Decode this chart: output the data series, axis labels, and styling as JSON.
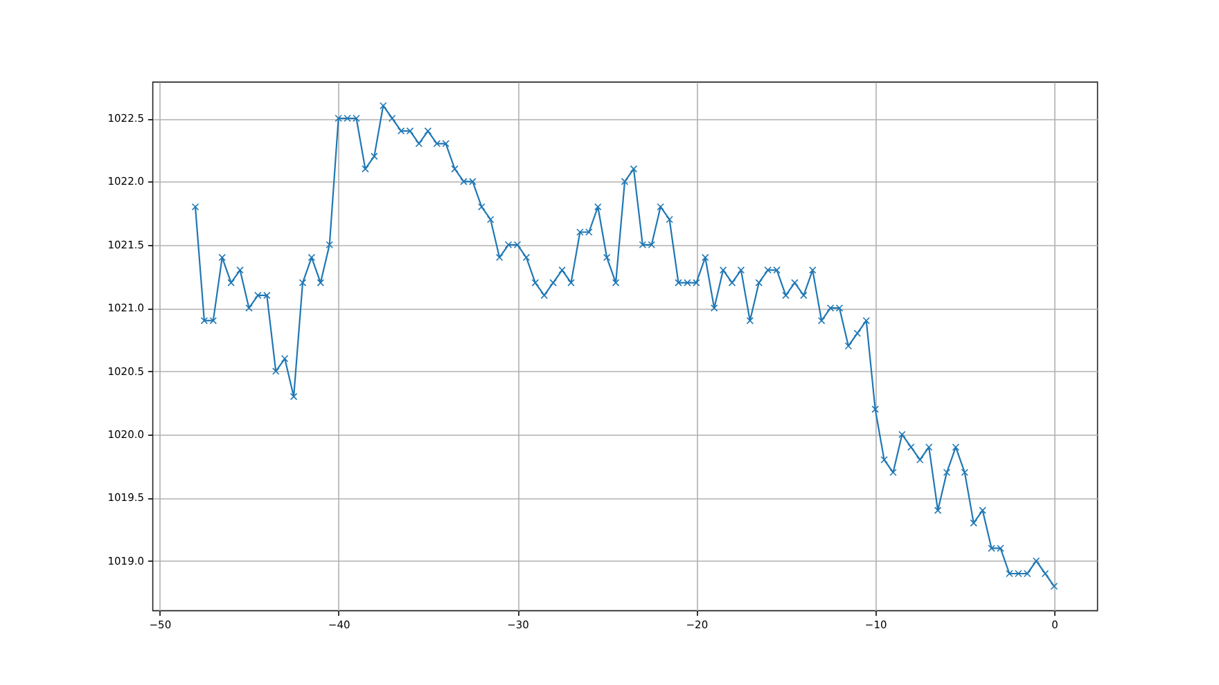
{
  "chart_data": {
    "type": "line",
    "x": [
      -48,
      -47.5,
      -47,
      -46.5,
      -46,
      -45.5,
      -45,
      -44.5,
      -44,
      -43.5,
      -43,
      -42.5,
      -42,
      -41.5,
      -41,
      -40.5,
      -40,
      -39.5,
      -39,
      -38.5,
      -38,
      -37.5,
      -37,
      -36.5,
      -36,
      -35.5,
      -35,
      -34.5,
      -34,
      -33.5,
      -33,
      -32.5,
      -32,
      -31.5,
      -31,
      -30.5,
      -30,
      -29.5,
      -29,
      -28.5,
      -28,
      -27.5,
      -27,
      -26.5,
      -26,
      -25.5,
      -25,
      -24.5,
      -24,
      -23.5,
      -23,
      -22.5,
      -22,
      -21.5,
      -21,
      -20.5,
      -20,
      -19.5,
      -19,
      -18.5,
      -18,
      -17.5,
      -17,
      -16.5,
      -16,
      -15.5,
      -15,
      -14.5,
      -14,
      -13.5,
      -13,
      -12.5,
      -12,
      -11.5,
      -11,
      -10.5,
      -10,
      -9.5,
      -9,
      -8.5,
      -8,
      -7.5,
      -7,
      -6.5,
      -6,
      -5.5,
      -5,
      -4.5,
      -4,
      -3.5,
      -3,
      -2.5,
      -2,
      -1.5,
      -1,
      -0.5,
      0
    ],
    "series": [
      {
        "color": "#1f77b4",
        "values": [
          1021.8,
          1020.9,
          1020.9,
          1021.4,
          1021.2,
          1021.3,
          1021.0,
          1021.1,
          1021.1,
          1020.5,
          1020.6,
          1020.3,
          1021.2,
          1021.4,
          1021.2,
          1021.5,
          1022.5,
          1022.5,
          1022.5,
          1022.1,
          1022.2,
          1022.6,
          1022.5,
          1022.4,
          1022.4,
          1022.3,
          1022.4,
          1022.3,
          1022.3,
          1022.1,
          1022.0,
          1022.0,
          1021.8,
          1021.7,
          1021.4,
          1021.5,
          1021.5,
          1021.4,
          1021.2,
          1021.1,
          1021.2,
          1021.3,
          1021.2,
          1021.6,
          1021.6,
          1021.8,
          1021.4,
          1021.2,
          1022.0,
          1022.1,
          1021.5,
          1021.5,
          1021.8,
          1021.7,
          1021.2,
          1021.2,
          1021.2,
          1021.4,
          1021.0,
          1021.3,
          1021.2,
          1021.3,
          1020.9,
          1021.2,
          1021.3,
          1021.3,
          1021.1,
          1021.2,
          1021.1,
          1021.3,
          1020.9,
          1021.0,
          1021.0,
          1020.7,
          1020.8,
          1020.9,
          1020.2,
          1019.8,
          1019.7,
          1020.0,
          1019.9,
          1019.8,
          1019.9,
          1019.4,
          1019.7,
          1019.9,
          1019.7,
          1019.3,
          1019.4,
          1019.1,
          1019.1,
          1018.9,
          1018.9,
          1018.9,
          1019.0,
          1018.9,
          1018.8
        ]
      }
    ],
    "xlim": [
      -50.4,
      2.4
    ],
    "xticks": [
      -50,
      -40,
      -30,
      -20,
      -10,
      0
    ],
    "ylim": [
      1018.61,
      1022.79
    ],
    "yticks": [
      {
        "value": 1019,
        "label": "1019.0"
      },
      {
        "value": 1019.5,
        "label": "1019.5"
      },
      {
        "value": 1020,
        "label": "1020.0"
      },
      {
        "value": 1020.5,
        "label": "1020.5"
      },
      {
        "value": 1021,
        "label": "1021.0"
      },
      {
        "value": 1021.5,
        "label": "1021.5"
      },
      {
        "value": 1022,
        "label": "1022.0"
      },
      {
        "value": 1022.5,
        "label": "1022.5"
      }
    ],
    "grid": true,
    "marker": "cross",
    "line_style": "solid"
  }
}
